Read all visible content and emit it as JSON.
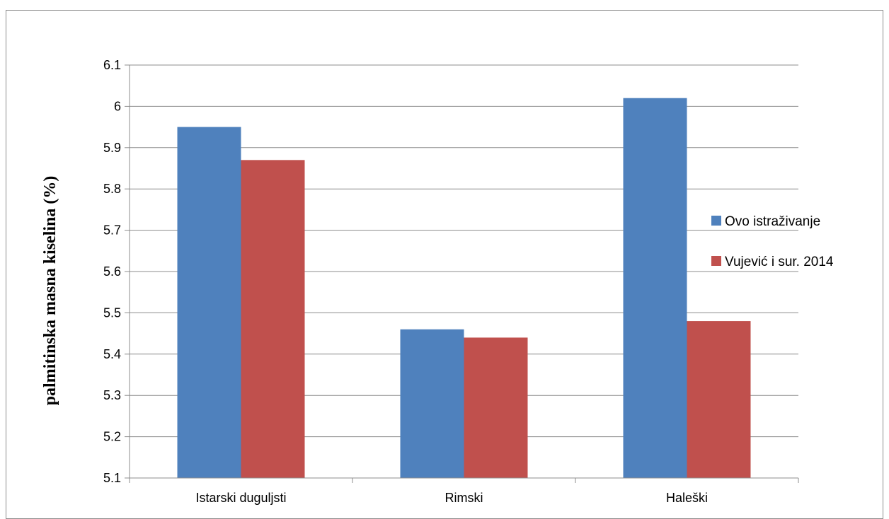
{
  "chart_data": {
    "type": "bar",
    "title": "",
    "xlabel": "",
    "ylabel": "palmitinska masna kiselina  (%)",
    "categories": [
      "Istarski duguljsti",
      "Rimski",
      "Haleški"
    ],
    "series": [
      {
        "name": "Ovo istraživanje",
        "color": "#4F81BD",
        "values": [
          5.95,
          5.46,
          6.02
        ]
      },
      {
        "name": "Vujević i sur. 2014",
        "color": "#C0504D",
        "values": [
          5.87,
          5.44,
          5.48
        ]
      }
    ],
    "ylim": [
      5.1,
      6.1
    ],
    "yticks": [
      5.1,
      5.2,
      5.3,
      5.4,
      5.5,
      5.6,
      5.7,
      5.8,
      5.9,
      6,
      6.1
    ],
    "grid": true,
    "legend": "right"
  }
}
